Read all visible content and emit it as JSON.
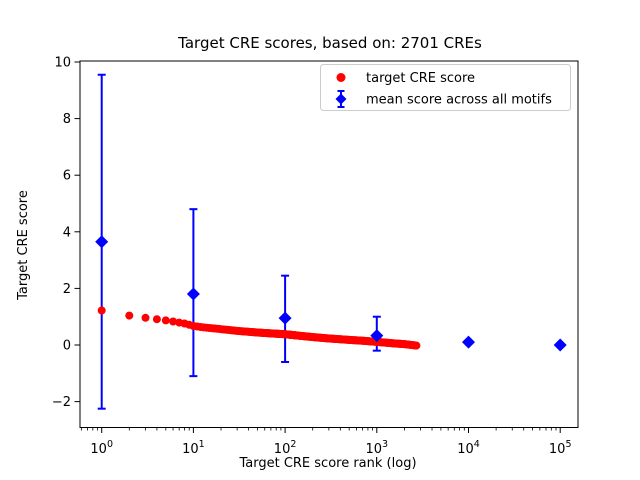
{
  "chart_data": {
    "type": "scatter",
    "title": "Target CRE scores, based on: 2701 CREs",
    "xlabel": "Target CRE score rank (log)",
    "ylabel": "Target CRE score",
    "x_scale": "log",
    "xlim_log10": [
      -0.24,
      5.18
    ],
    "ylim": [
      -2.9,
      10.0
    ],
    "grid": false,
    "n_cres": 2701,
    "colors": {
      "target_score": "#ff0000",
      "mean_score": "#0000ff",
      "legend_border": "#cccccc",
      "axis": "#000000"
    },
    "x_ticks": [
      {
        "rank": 1,
        "base": "10",
        "exp": "0"
      },
      {
        "rank": 10,
        "base": "10",
        "exp": "1"
      },
      {
        "rank": 100,
        "base": "10",
        "exp": "2"
      },
      {
        "rank": 1000,
        "base": "10",
        "exp": "3"
      },
      {
        "rank": 10000,
        "base": "10",
        "exp": "4"
      },
      {
        "rank": 100000,
        "base": "10",
        "exp": "5"
      }
    ],
    "y_ticks": [
      {
        "value": -2,
        "label": "−2"
      },
      {
        "value": 0,
        "label": "0"
      },
      {
        "value": 2,
        "label": "2"
      },
      {
        "value": 4,
        "label": "4"
      },
      {
        "value": 6,
        "label": "6"
      },
      {
        "value": 8,
        "label": "8"
      },
      {
        "value": 10,
        "label": "10"
      }
    ],
    "legend": {
      "position": "upper center-right",
      "items": [
        {
          "label": "target CRE score",
          "marker": "dot",
          "color": "#ff0000"
        },
        {
          "label": "mean score across all motifs",
          "marker": "diamond-errorbar",
          "color": "#0000ff"
        }
      ]
    },
    "series": [
      {
        "name": "target CRE score",
        "type": "scatter-curve",
        "color": "#ff0000",
        "marker": "circle",
        "n_points": 2701,
        "rank_range": [
          1,
          2701
        ],
        "anchors": [
          [
            1,
            1.22
          ],
          [
            2,
            1.04
          ],
          [
            3,
            0.96
          ],
          [
            4,
            0.91
          ],
          [
            5,
            0.87
          ],
          [
            6,
            0.83
          ],
          [
            8,
            0.76
          ],
          [
            10,
            0.67
          ],
          [
            14,
            0.61
          ],
          [
            20,
            0.56
          ],
          [
            30,
            0.5
          ],
          [
            50,
            0.44
          ],
          [
            70,
            0.41
          ],
          [
            100,
            0.38
          ],
          [
            150,
            0.32
          ],
          [
            200,
            0.28
          ],
          [
            300,
            0.23
          ],
          [
            500,
            0.18
          ],
          [
            700,
            0.15
          ],
          [
            1000,
            0.11
          ],
          [
            1500,
            0.06
          ],
          [
            2000,
            0.03
          ],
          [
            2701,
            -0.02
          ]
        ]
      },
      {
        "name": "mean score across all motifs",
        "type": "errorbar",
        "color": "#0000ff",
        "marker": "diamond",
        "points": [
          {
            "rank": 1,
            "mean": 3.65,
            "lo": -2.25,
            "hi": 9.55
          },
          {
            "rank": 10,
            "mean": 1.8,
            "lo": -1.1,
            "hi": 4.8
          },
          {
            "rank": 100,
            "mean": 0.95,
            "lo": -0.6,
            "hi": 2.45
          },
          {
            "rank": 1000,
            "mean": 0.33,
            "lo": -0.2,
            "hi": 1.0
          },
          {
            "rank": 10000,
            "mean": 0.1,
            "lo": 0.06,
            "hi": 0.14
          },
          {
            "rank": 100000,
            "mean": 0.0,
            "lo": -0.04,
            "hi": 0.04
          }
        ]
      }
    ]
  }
}
